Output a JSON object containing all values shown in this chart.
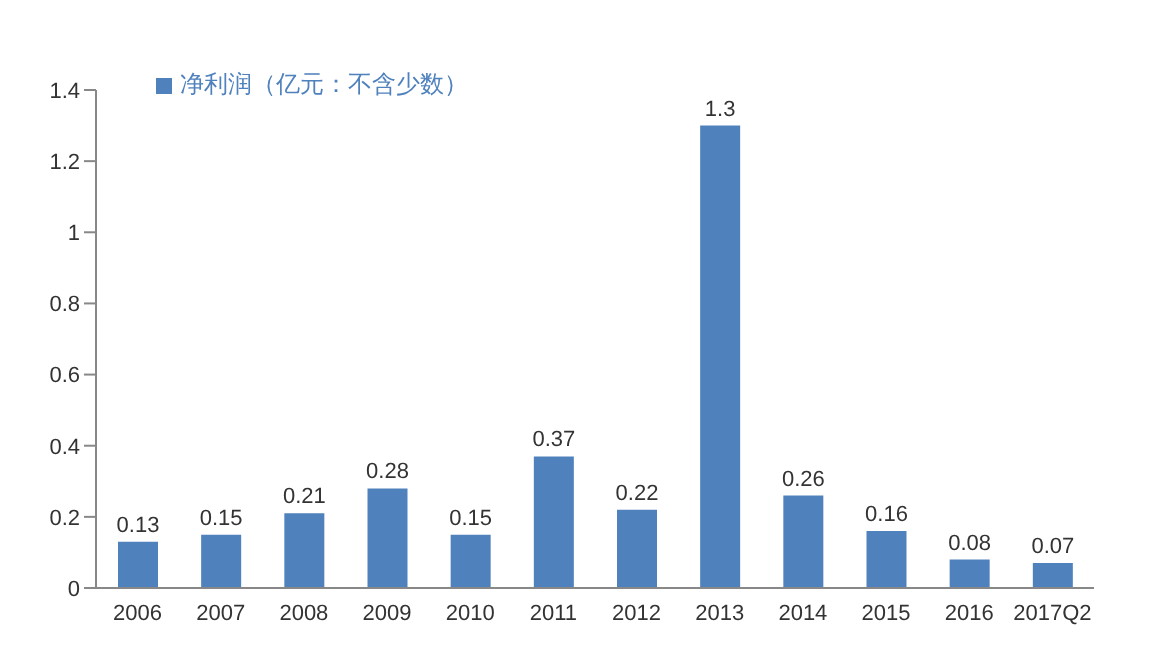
{
  "chart_data": {
    "type": "bar",
    "categories": [
      "2006",
      "2007",
      "2008",
      "2009",
      "2010",
      "2011",
      "2012",
      "2013",
      "2014",
      "2015",
      "2016",
      "2017Q2"
    ],
    "series": [
      {
        "name": "净利润（亿元：不含少数）",
        "color": "#4f81bd",
        "values": [
          0.13,
          0.15,
          0.21,
          0.28,
          0.15,
          0.37,
          0.22,
          1.3,
          0.26,
          0.16,
          0.08,
          0.07
        ]
      }
    ],
    "ylim": [
      0,
      1.4
    ],
    "yticks": [
      0,
      0.2,
      0.4,
      0.6,
      0.8,
      1,
      1.2,
      1.4
    ],
    "data_labels": true,
    "legend": "top left",
    "grid": false
  }
}
